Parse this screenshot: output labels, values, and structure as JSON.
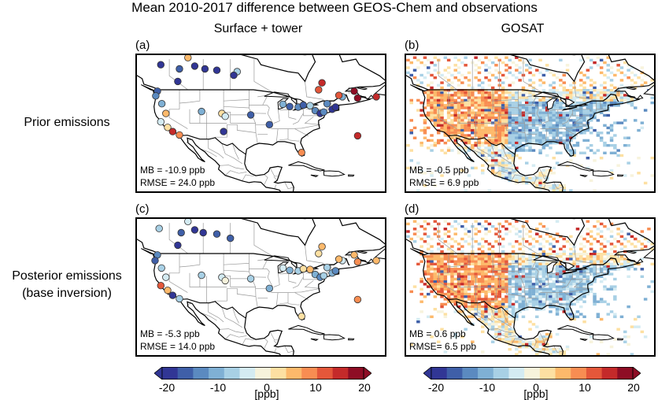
{
  "figure": {
    "title": "Mean 2010-2017 difference between GEOS-Chem and observations",
    "col_titles": [
      "Surface + tower",
      "GOSAT"
    ],
    "row_labels": [
      {
        "line1": "Prior emissions",
        "line2": ""
      },
      {
        "line1": "Posterior emissions",
        "line2": "(base inversion)"
      }
    ]
  },
  "panels": [
    {
      "id": "a",
      "letter": "(a)",
      "kind": "sites",
      "mb": "MB = -10.9 ppb",
      "rmse": "RMSE = 24.0 ppb"
    },
    {
      "id": "b",
      "letter": "(b)",
      "kind": "grid",
      "mb": "MB = -0.5 ppb",
      "rmse": "RMSE = 6.9 ppb"
    },
    {
      "id": "c",
      "letter": "(c)",
      "kind": "sites",
      "mb": "MB = -5.3 ppb",
      "rmse": "RMSE = 14.0 ppb"
    },
    {
      "id": "d",
      "letter": "(d)",
      "kind": "grid",
      "mb": "MB = 0.6 ppb",
      "rmse": "RMSE= 6.5 ppb"
    }
  ],
  "colorbar": {
    "ticks": [
      "-20",
      "-10",
      "0",
      "10",
      "20"
    ],
    "label": "[ppb]",
    "range": [
      -20,
      20
    ],
    "extend": "both",
    "colors": [
      "#313695",
      "#3f5fa8",
      "#5b8ac0",
      "#7fb0d4",
      "#a8d0e5",
      "#d4ebf2",
      "#f7f3dc",
      "#fde0a2",
      "#fdb96b",
      "#f88d52",
      "#e4573a",
      "#c42a2a",
      "#8e0d25"
    ]
  },
  "site_observations": {
    "note_units": "model minus observation, ppb",
    "prior": [
      {
        "lon": -122.5,
        "lat": 58.0,
        "v": -18
      },
      {
        "lon": -114.5,
        "lat": 60.5,
        "v": 5
      },
      {
        "lon": -117.0,
        "lat": 56.5,
        "v": -16
      },
      {
        "lon": -109.5,
        "lat": 56.5,
        "v": -18
      },
      {
        "lon": -106.0,
        "lat": 56.0,
        "v": -19
      },
      {
        "lon": -112.5,
        "lat": 57.5,
        "v": -20
      },
      {
        "lon": -100.0,
        "lat": 55.5,
        "v": -7
      },
      {
        "lon": -101.0,
        "lat": 54.2,
        "v": -20
      },
      {
        "lon": -117.5,
        "lat": 52.0,
        "v": -20
      },
      {
        "lon": -123.5,
        "lat": 48.5,
        "v": -15
      },
      {
        "lon": -124.0,
        "lat": 46.8,
        "v": -12
      },
      {
        "lon": -122.2,
        "lat": 44.0,
        "v": -10
      },
      {
        "lon": -121.0,
        "lat": 40.5,
        "v": 7
      },
      {
        "lon": -122.5,
        "lat": 37.5,
        "v": -3
      },
      {
        "lon": -120.5,
        "lat": 35.5,
        "v": 3
      },
      {
        "lon": -119.0,
        "lat": 34.0,
        "v": 16
      },
      {
        "lon": -117.0,
        "lat": 32.8,
        "v": 9
      },
      {
        "lon": -110.5,
        "lat": 41.2,
        "v": -10
      },
      {
        "lon": -104.5,
        "lat": 40.5,
        "v": 4
      },
      {
        "lon": -103.5,
        "lat": 39.5,
        "v": -2
      },
      {
        "lon": -96.0,
        "lat": 40.0,
        "v": -16
      },
      {
        "lon": -90.5,
        "lat": 36.5,
        "v": -16
      },
      {
        "lon": -104.0,
        "lat": 34.0,
        "v": -19
      },
      {
        "lon": -86.5,
        "lat": 43.8,
        "v": -8
      },
      {
        "lon": -84.5,
        "lat": 43.0,
        "v": -15
      },
      {
        "lon": -82.0,
        "lat": 42.8,
        "v": -12
      },
      {
        "lon": -80.5,
        "lat": 43.5,
        "v": -16
      },
      {
        "lon": -78.5,
        "lat": 43.3,
        "v": -5
      },
      {
        "lon": -77.0,
        "lat": 41.5,
        "v": -13
      },
      {
        "lon": -75.5,
        "lat": 40.5,
        "v": -18
      },
      {
        "lon": -73.5,
        "lat": 44.0,
        "v": -12
      },
      {
        "lon": -74.5,
        "lat": 41.0,
        "v": -11
      },
      {
        "lon": -72.0,
        "lat": 42.0,
        "v": -17
      },
      {
        "lon": -71.0,
        "lat": 42.8,
        "v": -19
      },
      {
        "lon": -69.0,
        "lat": 46.5,
        "v": -9
      },
      {
        "lon": -70.0,
        "lat": 47.0,
        "v": 12
      },
      {
        "lon": -65.5,
        "lat": 48.5,
        "v": 18
      },
      {
        "lon": -64.5,
        "lat": 46.0,
        "v": 20
      },
      {
        "lon": -59.0,
        "lat": 46.5,
        "v": 14
      },
      {
        "lon": -76.0,
        "lat": 49.0,
        "v": 11
      },
      {
        "lon": -75.0,
        "lat": 51.5,
        "v": 15
      },
      {
        "lon": -81.0,
        "lat": 26.5,
        "v": 8
      },
      {
        "lon": -64.5,
        "lat": 32.5,
        "v": 14
      }
    ],
    "posterior": [
      {
        "lon": -123.0,
        "lat": 58.0,
        "v": -7
      },
      {
        "lon": -114.5,
        "lat": 60.5,
        "v": -3
      },
      {
        "lon": -116.5,
        "lat": 56.5,
        "v": -16
      },
      {
        "lon": -110.0,
        "lat": 56.5,
        "v": -20
      },
      {
        "lon": -106.0,
        "lat": 56.0,
        "v": -15
      },
      {
        "lon": -112.5,
        "lat": 57.5,
        "v": -20
      },
      {
        "lon": -102.0,
        "lat": 54.5,
        "v": -16
      },
      {
        "lon": -117.5,
        "lat": 52.0,
        "v": -20
      },
      {
        "lon": -123.5,
        "lat": 48.5,
        "v": -12
      },
      {
        "lon": -124.2,
        "lat": 46.5,
        "v": -14
      },
      {
        "lon": -122.3,
        "lat": 43.8,
        "v": -5
      },
      {
        "lon": -121.0,
        "lat": 40.5,
        "v": -3
      },
      {
        "lon": -122.5,
        "lat": 37.5,
        "v": 12
      },
      {
        "lon": -120.5,
        "lat": 35.8,
        "v": 5
      },
      {
        "lon": -119.0,
        "lat": 34.0,
        "v": -18
      },
      {
        "lon": -117.0,
        "lat": 32.8,
        "v": -5
      },
      {
        "lon": -110.5,
        "lat": 41.2,
        "v": -7
      },
      {
        "lon": -104.5,
        "lat": 40.5,
        "v": -4
      },
      {
        "lon": -103.5,
        "lat": 39.3,
        "v": -1
      },
      {
        "lon": -96.0,
        "lat": 40.0,
        "v": -5
      },
      {
        "lon": -90.5,
        "lat": 36.5,
        "v": -9
      },
      {
        "lon": -86.5,
        "lat": 43.8,
        "v": -4
      },
      {
        "lon": -84.5,
        "lat": 43.0,
        "v": -9
      },
      {
        "lon": -82.0,
        "lat": 42.8,
        "v": -6
      },
      {
        "lon": -80.5,
        "lat": 43.5,
        "v": 3
      },
      {
        "lon": -78.5,
        "lat": 43.3,
        "v": 5
      },
      {
        "lon": -77.0,
        "lat": 41.5,
        "v": -8
      },
      {
        "lon": -75.5,
        "lat": 40.5,
        "v": -13
      },
      {
        "lon": -73.5,
        "lat": 44.0,
        "v": -7
      },
      {
        "lon": -74.5,
        "lat": 41.0,
        "v": -5
      },
      {
        "lon": -72.0,
        "lat": 42.0,
        "v": -10
      },
      {
        "lon": -71.0,
        "lat": 42.8,
        "v": -12
      },
      {
        "lon": -69.0,
        "lat": 46.5,
        "v": -2
      },
      {
        "lon": -70.0,
        "lat": 47.0,
        "v": 5
      },
      {
        "lon": -65.5,
        "lat": 48.5,
        "v": 7
      },
      {
        "lon": -64.5,
        "lat": 46.0,
        "v": 9
      },
      {
        "lon": -59.0,
        "lat": 46.5,
        "v": 6
      },
      {
        "lon": -76.0,
        "lat": 49.0,
        "v": 4
      },
      {
        "lon": -75.0,
        "lat": 51.5,
        "v": 6
      },
      {
        "lon": -81.0,
        "lat": 26.5,
        "v": 4
      },
      {
        "lon": -64.5,
        "lat": 32.5,
        "v": 8
      }
    ]
  }
}
